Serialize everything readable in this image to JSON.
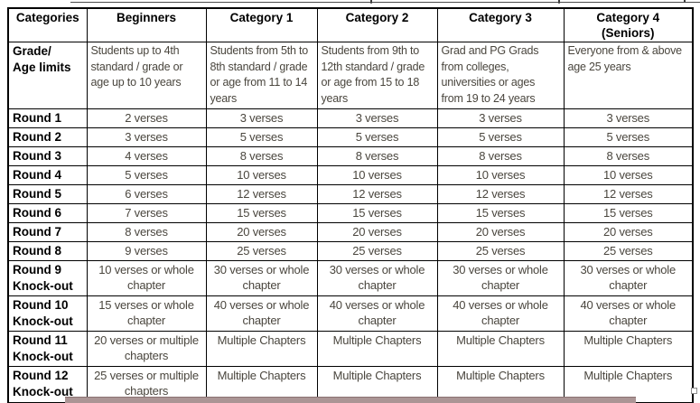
{
  "colors": {
    "border": "#000000",
    "header_text": "#000000",
    "body_text": "#4a463e",
    "bar": "#ab9595"
  },
  "table": {
    "columns": [
      "Categories",
      "Beginners",
      "Category 1",
      "Category 2",
      "Category 3",
      "Category 4\n(Seniors)"
    ],
    "grade_row": {
      "label": "Grade/\nAge limits",
      "cells": [
        "Students up to 4th standard / grade or age up to 10 years",
        "Students from 5th to 8th standard / grade or age from 11 to 14 years",
        "Students from 9th to 12th standard / grade or age from 15 to 18 years",
        "Grad and PG Grads from colleges, universities or ages from 19 to 24 years",
        "Everyone from & above age 25 years"
      ]
    },
    "rounds": [
      {
        "label": "Round 1",
        "cells": [
          "2 verses",
          "3 verses",
          "3 verses",
          "3 verses",
          "3 verses"
        ]
      },
      {
        "label": "Round 2",
        "cells": [
          "3 verses",
          "5 verses",
          "5 verses",
          "5 verses",
          "5 verses"
        ]
      },
      {
        "label": "Round 3",
        "cells": [
          "4 verses",
          "8 verses",
          "8 verses",
          "8 verses",
          "8 verses"
        ]
      },
      {
        "label": "Round 4",
        "cells": [
          "5 verses",
          "10 verses",
          "10 verses",
          "10 verses",
          "10 verses"
        ]
      },
      {
        "label": "Round 5",
        "cells": [
          "6 verses",
          "12 verses",
          "12 verses",
          "12 verses",
          "12 verses"
        ]
      },
      {
        "label": "Round 6",
        "cells": [
          "7 verses",
          "15 verses",
          "15 verses",
          "15 verses",
          "15 verses"
        ]
      },
      {
        "label": "Round 7",
        "cells": [
          "8 verses",
          "20 verses",
          "20 verses",
          "20 verses",
          "20 verses"
        ]
      },
      {
        "label": "Round 8",
        "cells": [
          "9 verses",
          "25 verses",
          "25 verses",
          "25 verses",
          "25 verses"
        ]
      },
      {
        "label": "Round 9\nKnock-out",
        "cells": [
          "10 verses or whole chapter",
          "30 verses or whole chapter",
          "30 verses or whole chapter",
          "30 verses or whole chapter",
          "30 verses or whole chapter"
        ]
      },
      {
        "label": "Round 10\nKnock-out",
        "cells": [
          "15 verses or whole chapter",
          "40 verses or whole chapter",
          "40 verses or whole chapter",
          "40 verses or whole chapter",
          "40 verses or whole chapter"
        ]
      },
      {
        "label": "Round 11\nKnock-out",
        "cells": [
          "20 verses or multiple chapters",
          "Multiple Chapters",
          "Multiple Chapters",
          "Multiple Chapters",
          "Multiple Chapters"
        ]
      },
      {
        "label": "Round 12\nKnock-out",
        "cells": [
          "25 verses or multiple chapters",
          "Multiple Chapters",
          "Multiple Chapters",
          "Multiple Chapters",
          "Multiple Chapters"
        ]
      }
    ]
  }
}
